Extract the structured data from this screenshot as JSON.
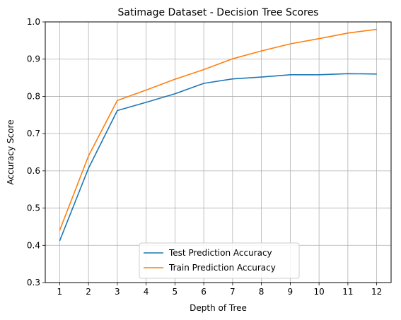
{
  "chart_data": {
    "type": "line",
    "title": "Satimage Dataset - Decision Tree Scores",
    "xlabel": "Depth of Tree",
    "ylabel": "Accuracy Score",
    "x": [
      1,
      2,
      3,
      4,
      5,
      6,
      7,
      8,
      9,
      10,
      11,
      12
    ],
    "xlim": [
      0.5,
      12.5
    ],
    "ylim": [
      0.3,
      1.0
    ],
    "yticks": [
      "0.3",
      "0.4",
      "0.5",
      "0.6",
      "0.7",
      "0.8",
      "0.9",
      "1.0"
    ],
    "grid": true,
    "legend_position": "lower-center",
    "series": [
      {
        "name": "Test Prediction Accuracy",
        "color": "#1f77b4",
        "values": [
          0.412,
          0.607,
          0.762,
          0.784,
          0.807,
          0.835,
          0.847,
          0.852,
          0.858,
          0.858,
          0.861,
          0.86
        ]
      },
      {
        "name": "Train Prediction Accuracy",
        "color": "#ff7f0e",
        "values": [
          0.44,
          0.64,
          0.789,
          0.817,
          0.846,
          0.872,
          0.901,
          0.922,
          0.941,
          0.955,
          0.97,
          0.98
        ]
      }
    ]
  }
}
